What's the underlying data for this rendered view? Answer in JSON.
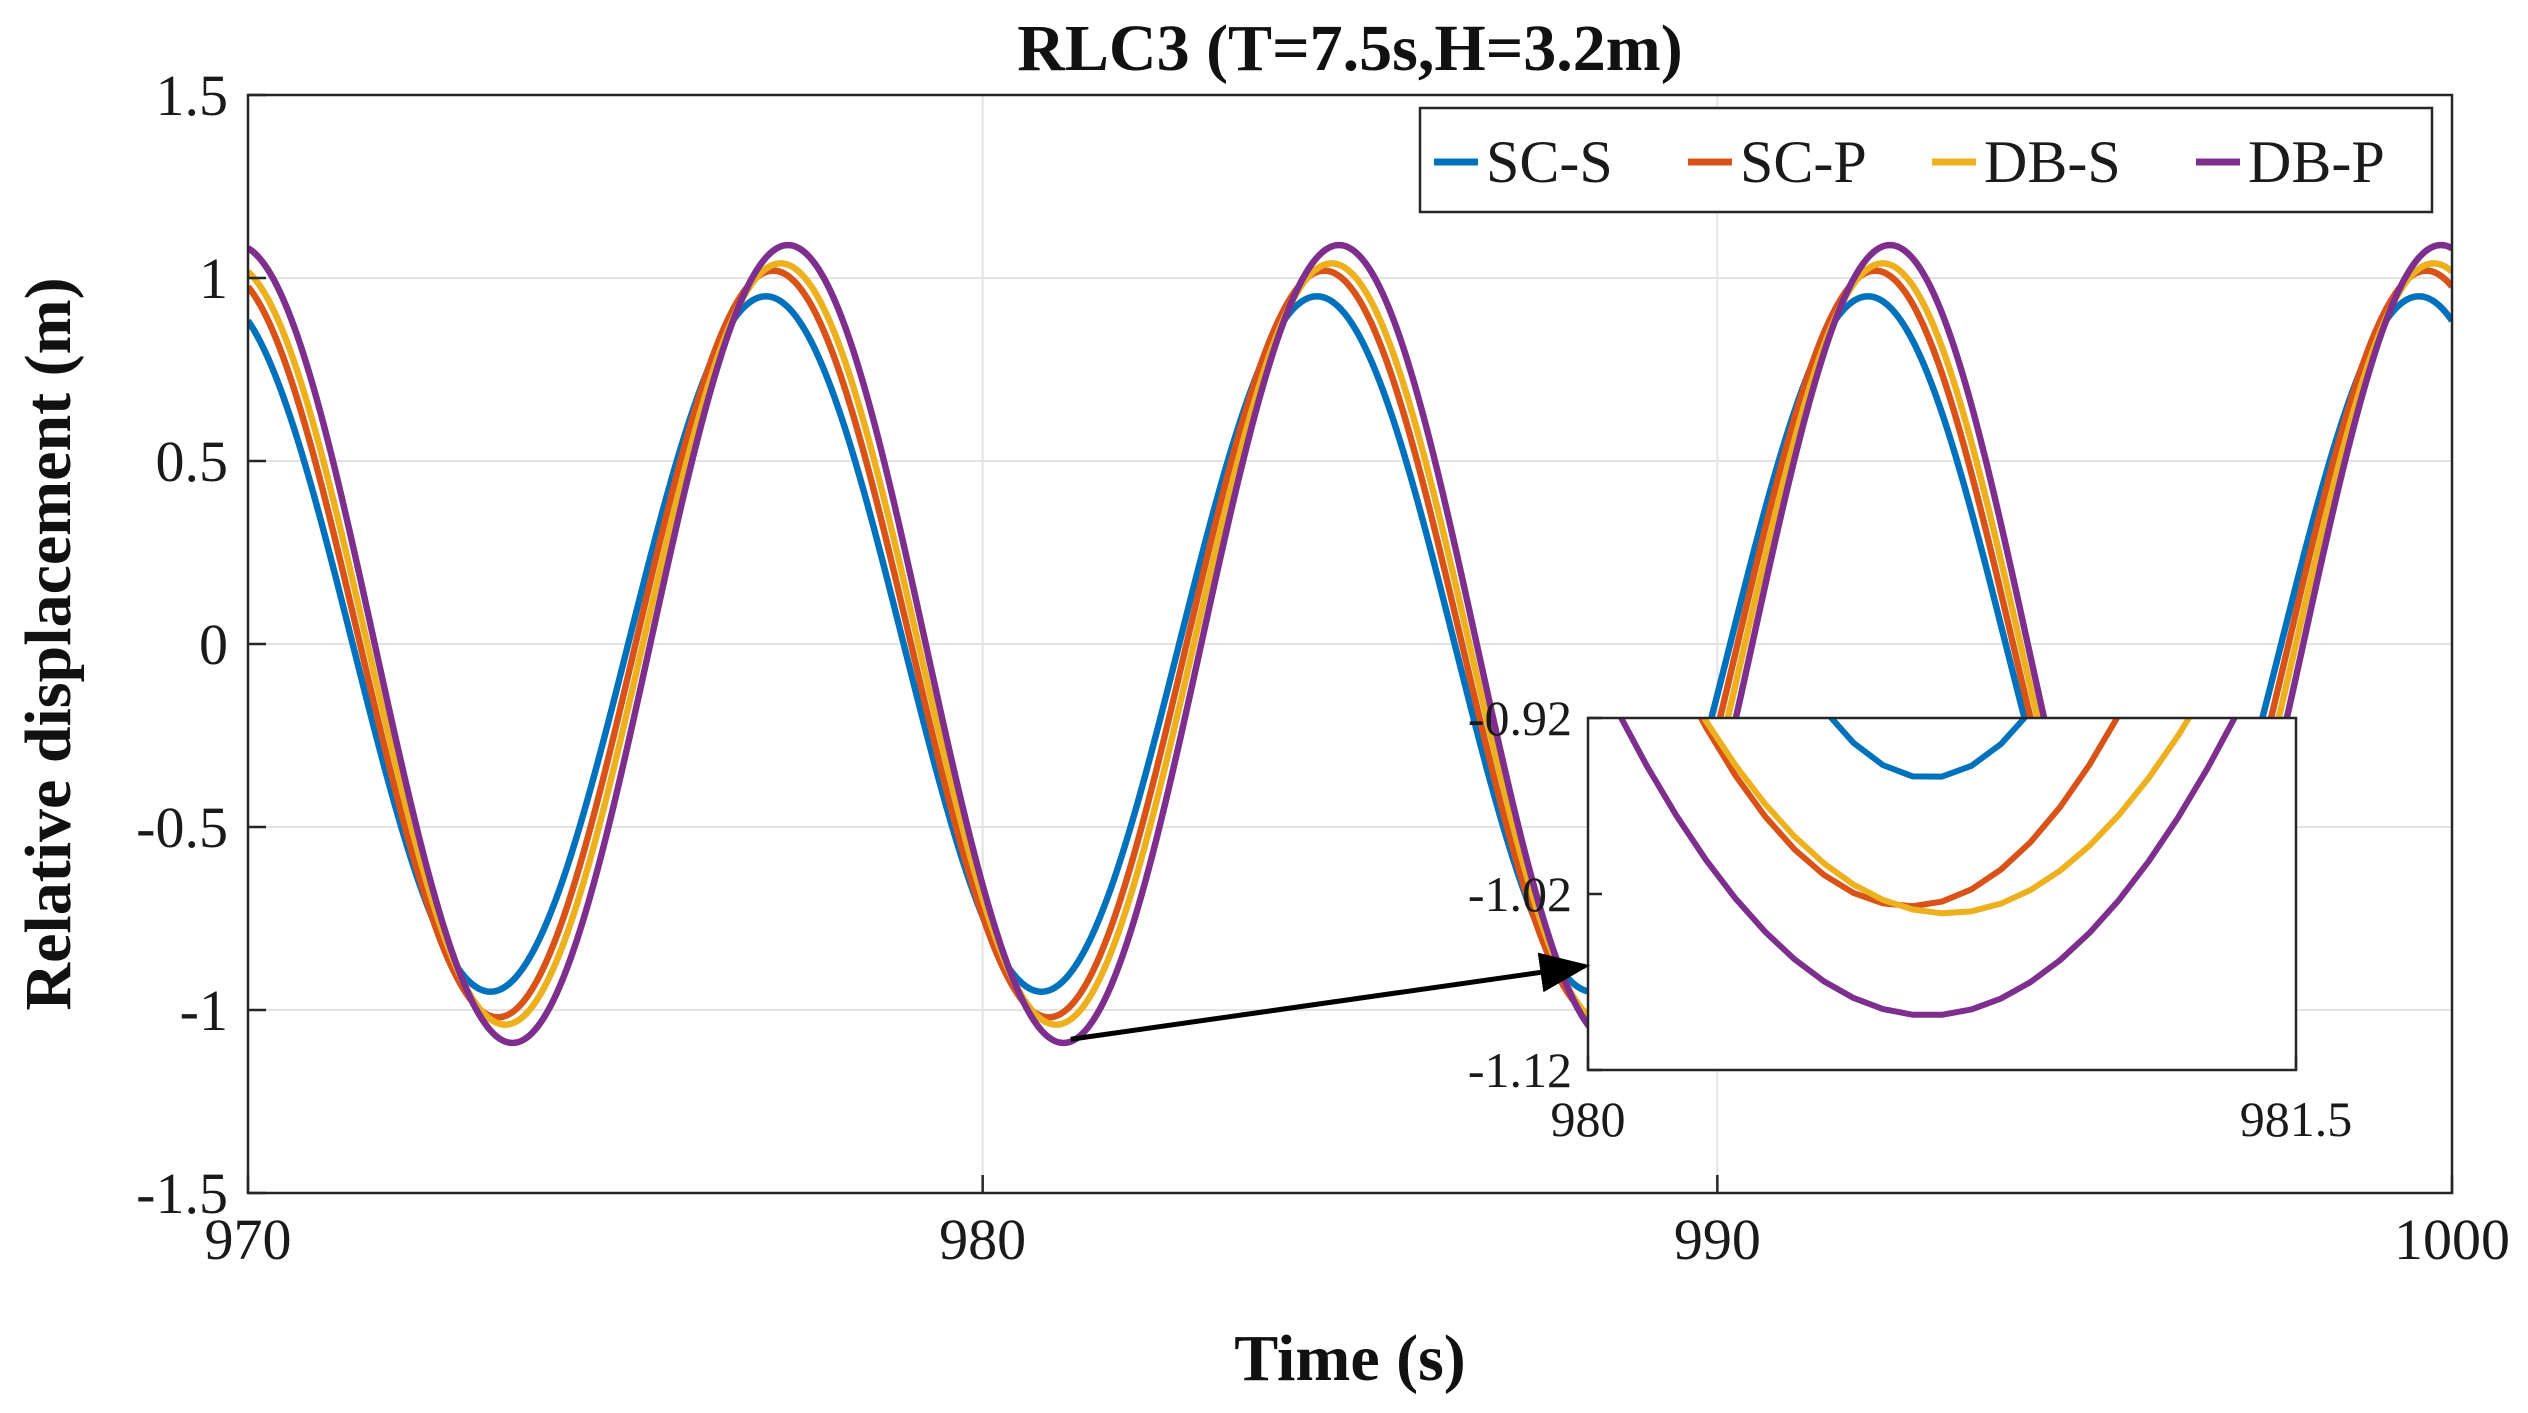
{
  "chart_data": {
    "type": "line",
    "title": "RLC3 (T=7.5s,H=3.2m)",
    "xlabel": "Time (s)",
    "ylabel": "Relative displacement (m)",
    "xlim": [
      970,
      1000
    ],
    "ylim": [
      -1.5,
      1.5
    ],
    "grid": true,
    "legend_location": "top-right",
    "x_ticks": [
      "970",
      "980",
      "990",
      "1000"
    ],
    "y_ticks": [
      "-1.5",
      "-1",
      "-0.5",
      "0",
      "0.5",
      "1",
      "1.5"
    ],
    "period_s": 7.5,
    "series": [
      {
        "name": "SC-S",
        "color": "#0072BD",
        "amplitude": 0.95,
        "first_trough_time": 973.3
      },
      {
        "name": "SC-P",
        "color": "#D95319",
        "amplitude": 1.02,
        "first_trough_time": 973.4
      },
      {
        "name": "DB-S",
        "color": "#EDB120",
        "amplitude": 1.04,
        "first_trough_time": 973.5
      },
      {
        "name": "DB-P",
        "color": "#7E2F8E",
        "amplitude": 1.09,
        "first_trough_time": 973.6
      }
    ],
    "inset": {
      "xlim": [
        980,
        981.5
      ],
      "ylim": [
        -1.12,
        -0.92
      ],
      "x_ticks": [
        "980",
        "981.5"
      ],
      "y_ticks": [
        "-0.92",
        "-1.02",
        "-1.12"
      ],
      "series": [
        {
          "name": "SC-S",
          "color": "#0072BD",
          "min_time": 980.72,
          "min_value": -0.954,
          "curvature": 0.8
        },
        {
          "name": "SC-P",
          "color": "#D95319",
          "min_time": 980.68,
          "min_value": -1.027,
          "curvature": 0.55
        },
        {
          "name": "DB-S",
          "color": "#EDB120",
          "min_time": 980.76,
          "min_value": -1.031,
          "curvature": 0.42
        },
        {
          "name": "DB-P",
          "color": "#7E2F8E",
          "min_time": 980.72,
          "min_value": -1.089,
          "curvature": 0.4
        }
      ]
    },
    "annotation": {
      "type": "arrow",
      "from": [
        981.2,
        -1.08
      ],
      "to": [
        988.2,
        -0.88
      ]
    }
  }
}
